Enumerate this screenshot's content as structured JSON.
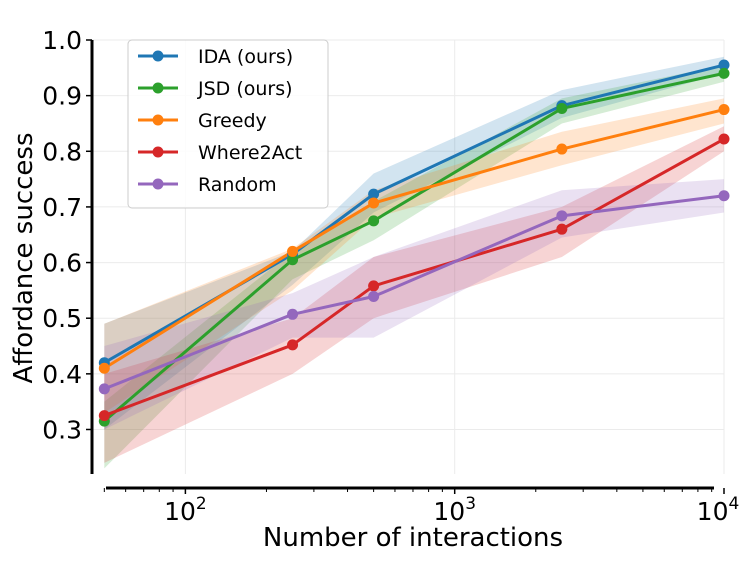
{
  "chart_data": {
    "type": "line",
    "title": "",
    "xlabel": "Number of interactions",
    "ylabel": "Affordance success",
    "xscale": "log",
    "xlim": [
      45,
      10000
    ],
    "ylim": [
      0.22,
      1.0
    ],
    "x": [
      50,
      250,
      500,
      2500,
      10000
    ],
    "xticks": [
      {
        "value": 100,
        "base": "10",
        "exp": "2"
      },
      {
        "value": 1000,
        "base": "10",
        "exp": "3"
      },
      {
        "value": 10000,
        "base": "10",
        "exp": "4"
      }
    ],
    "yticks": [
      "0.3",
      "0.4",
      "0.5",
      "0.6",
      "0.7",
      "0.8",
      "0.9",
      "1.0"
    ],
    "grid": true,
    "legend_position": "top-left",
    "series": [
      {
        "name": "IDA (ours)",
        "color": "#1f77b4",
        "values": [
          0.42,
          0.615,
          0.723,
          0.882,
          0.955
        ],
        "lower": [
          0.3,
          0.56,
          0.69,
          0.86,
          0.94
        ],
        "upper": [
          0.49,
          0.62,
          0.76,
          0.91,
          0.97
        ]
      },
      {
        "name": "JSD (ours)",
        "color": "#2ca02c",
        "values": [
          0.315,
          0.605,
          0.675,
          0.877,
          0.94
        ],
        "lower": [
          0.23,
          0.57,
          0.64,
          0.85,
          0.925
        ],
        "upper": [
          0.35,
          0.62,
          0.71,
          0.895,
          0.955
        ]
      },
      {
        "name": "Greedy",
        "color": "#ff7f0e",
        "values": [
          0.41,
          0.62,
          0.707,
          0.804,
          0.875
        ],
        "lower": [
          0.33,
          0.55,
          0.68,
          0.775,
          0.85
        ],
        "upper": [
          0.49,
          0.625,
          0.73,
          0.835,
          0.895
        ]
      },
      {
        "name": "Where2Act",
        "color": "#d62728",
        "values": [
          0.325,
          0.452,
          0.558,
          0.66,
          0.822
        ],
        "lower": [
          0.24,
          0.4,
          0.5,
          0.61,
          0.8
        ],
        "upper": [
          0.4,
          0.5,
          0.61,
          0.7,
          0.845
        ]
      },
      {
        "name": "Random",
        "color": "#9467bd",
        "values": [
          0.373,
          0.507,
          0.539,
          0.684,
          0.72
        ],
        "lower": [
          0.3,
          0.465,
          0.465,
          0.645,
          0.69
        ],
        "upper": [
          0.45,
          0.545,
          0.61,
          0.73,
          0.75
        ]
      }
    ]
  }
}
